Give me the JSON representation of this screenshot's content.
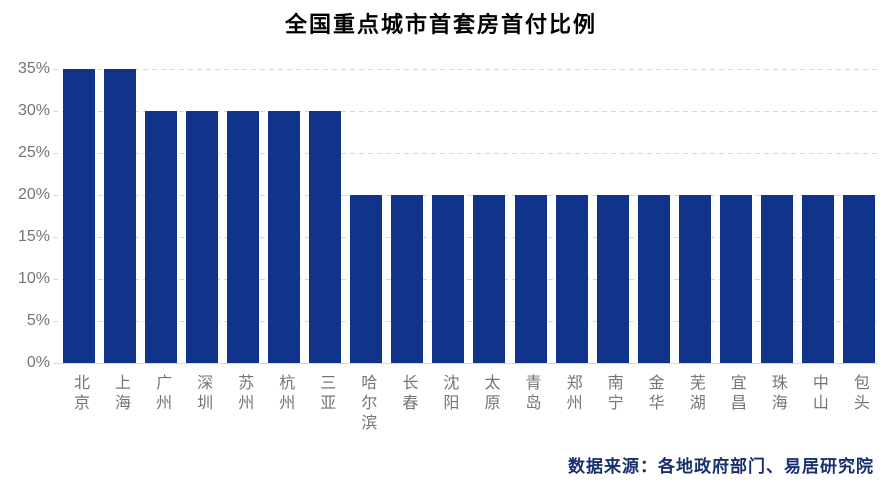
{
  "title": "全国重点城市首套房首付比例",
  "source_note": "数据来源：各地政府部门、易居研究院",
  "colors": {
    "bar": "#11338A",
    "grid": "#D9D9D9",
    "axis_label": "#757575",
    "title": "#000000",
    "source": "#17316E"
  },
  "chart_data": {
    "type": "bar",
    "title": "全国重点城市首套房首付比例",
    "categories": [
      "北京",
      "上海",
      "广州",
      "深圳",
      "苏州",
      "杭州",
      "三亚",
      "哈尔滨",
      "长春",
      "沈阳",
      "太原",
      "青岛",
      "郑州",
      "南宁",
      "金华",
      "芜湖",
      "宜昌",
      "珠海",
      "中山",
      "包头"
    ],
    "values": [
      35,
      35,
      30,
      30,
      30,
      30,
      30,
      20,
      20,
      20,
      20,
      20,
      20,
      20,
      20,
      20,
      20,
      20,
      20,
      20
    ],
    "unit": "%",
    "xlabel": "",
    "ylabel": "",
    "ylim": [
      0,
      35
    ],
    "ytick_step": 5,
    "yticks": [
      "0%",
      "5%",
      "10%",
      "15%",
      "20%",
      "25%",
      "30%",
      "35%"
    ],
    "grid": "horizontal-dashed",
    "legend_position": "none",
    "bar_orientation": "vertical",
    "source": "数据来源：各地政府部门、易居研究院"
  }
}
